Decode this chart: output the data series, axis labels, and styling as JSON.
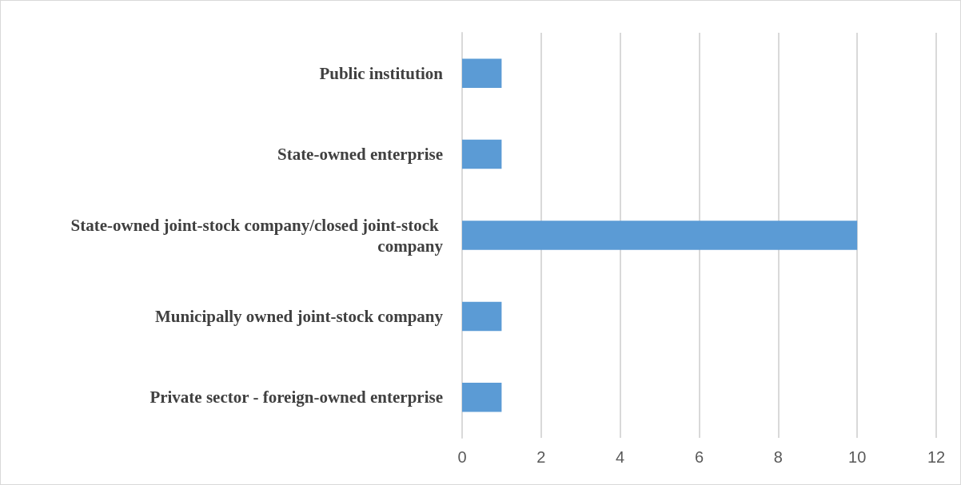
{
  "chart_data": {
    "type": "bar",
    "orientation": "horizontal",
    "categories": [
      "Public institution",
      "State-owned enterprise",
      "State-owned joint-stock company/closed joint-stock company",
      "Municipally owned joint-stock company",
      "Private sector - foreign-owned enterprise"
    ],
    "values": [
      1,
      1,
      10,
      1,
      1
    ],
    "color": "#5b9bd5",
    "xlim": [
      0,
      12
    ],
    "xticks": [
      0,
      2,
      4,
      6,
      8,
      10,
      12
    ],
    "grid": "x"
  }
}
